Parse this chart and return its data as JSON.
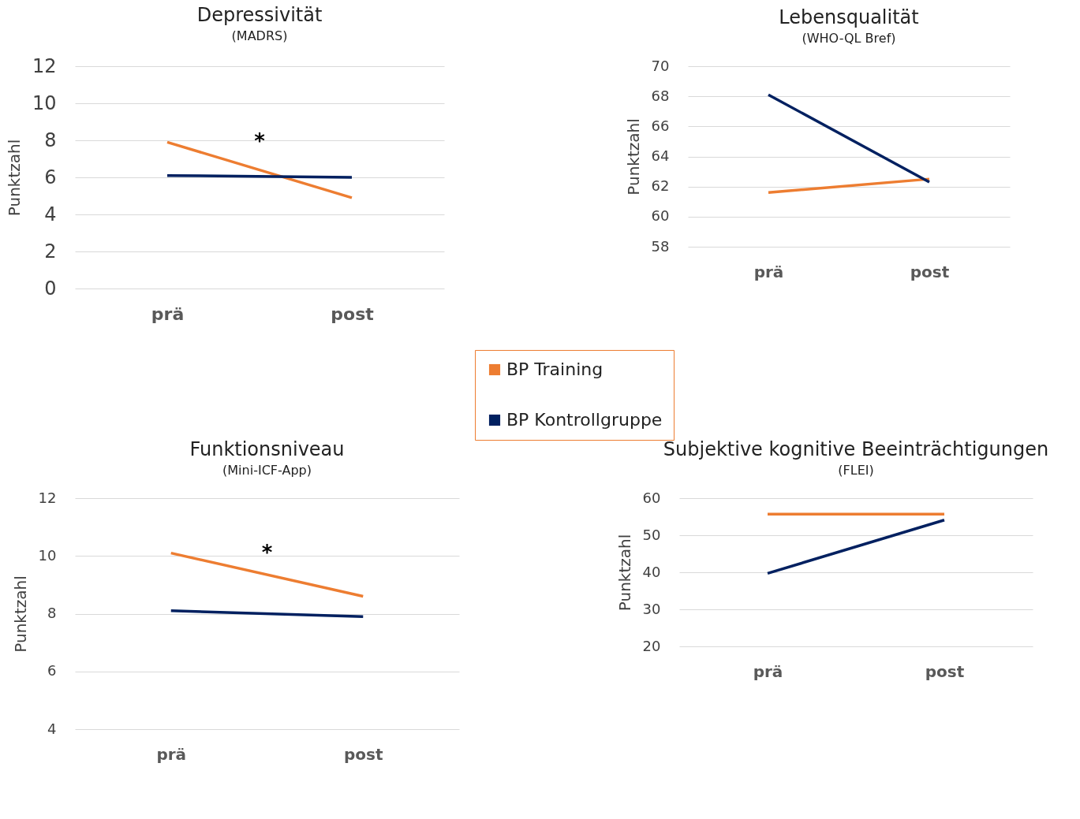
{
  "chart_data": [
    {
      "type": "line",
      "title": "Depressivität",
      "subtitle": "(MADRS)",
      "ylabel": "Punktzahl",
      "categories": [
        "prä",
        "post"
      ],
      "ylim": [
        0,
        12
      ],
      "yticks": [
        0,
        2,
        4,
        6,
        8,
        10,
        12
      ],
      "grid": "y",
      "annotations": [
        "*"
      ],
      "legend": "bottom right",
      "series": [
        {
          "name": "BP Training",
          "color": "#ed7d31",
          "values": [
            7.9,
            4.9
          ]
        },
        {
          "name": "BP Kontrollgruppe",
          "color": "#002060",
          "values": [
            6.1,
            6.0
          ]
        }
      ]
    },
    {
      "type": "line",
      "title": "Lebensqualität",
      "subtitle": "(WHO-QL Bref)",
      "ylabel": "Punktzahl",
      "categories": [
        "prä",
        "post"
      ],
      "ylim": [
        58,
        70
      ],
      "yticks": [
        58,
        60,
        62,
        64,
        66,
        68,
        70
      ],
      "grid": "y",
      "series": [
        {
          "color": "#ed7d31",
          "values": [
            61.6,
            62.5
          ]
        },
        {
          "color": "#002060",
          "values": [
            68.1,
            62.3
          ]
        }
      ]
    },
    {
      "type": "line",
      "title": "Funktionsniveau",
      "subtitle": "(Mini-ICF-App)",
      "ylabel": "Punktzahl",
      "categories": [
        "prä",
        "post"
      ],
      "ylim": [
        4,
        12
      ],
      "yticks": [
        4,
        6,
        8,
        10,
        12
      ],
      "grid": "y",
      "annotations": [
        "*"
      ],
      "series": [
        {
          "color": "#ed7d31",
          "values": [
            10.1,
            8.6
          ]
        },
        {
          "color": "#002060",
          "values": [
            8.1,
            7.9
          ]
        }
      ]
    },
    {
      "type": "line",
      "title": "Subjektive kognitive Beeinträchtigungen",
      "subtitle": "(FLEI)",
      "ylabel": "Punktzahl",
      "categories": [
        "prä",
        "post"
      ],
      "ylim": [
        20,
        60
      ],
      "yticks": [
        20,
        30,
        40,
        50,
        60
      ],
      "grid": "y",
      "series": [
        {
          "color": "#ed7d31",
          "values": [
            55.7,
            55.7
          ]
        },
        {
          "color": "#002060",
          "values": [
            39.7,
            54.1
          ]
        }
      ]
    }
  ]
}
